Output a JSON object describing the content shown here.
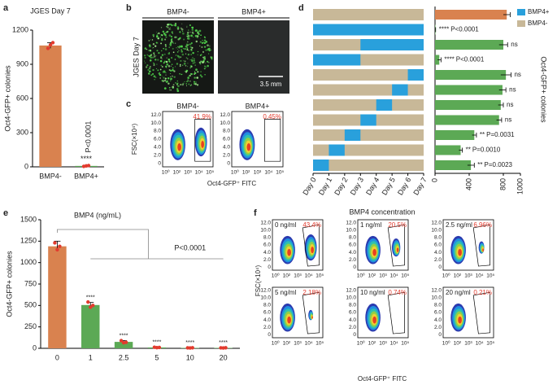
{
  "panel_labels": [
    "a",
    "b",
    "c",
    "d",
    "e",
    "f"
  ],
  "chart_data": [
    {
      "type": "bar",
      "title": "JGES Day 7",
      "ylabel": "Oct4-GFP+ colonies",
      "categories": [
        "BMP4-",
        "BMP4+"
      ],
      "values": [
        1065,
        8
      ],
      "errors": [
        25,
        3
      ],
      "points": [
        [
          1040,
          1070,
          1090
        ],
        [
          4,
          8,
          11
        ]
      ],
      "colors": [
        "#d9824f",
        "#5ca955"
      ],
      "point_color": "#e23b2e",
      "ylim": [
        0,
        1200
      ],
      "yticks": [
        0,
        300,
        600,
        900,
        1200
      ],
      "annotations": [
        {
          "category": 1,
          "stars": "****",
          "text": "P<0.0001"
        }
      ]
    },
    {
      "type": "timeline",
      "series": [
        {
          "name": "BMP4+",
          "color": "#29a0dc",
          "starts": [
            null,
            0,
            3,
            0,
            6,
            5,
            4,
            3,
            2,
            1,
            0
          ],
          "ends": [
            null,
            7,
            7,
            3,
            7,
            6,
            5,
            4,
            3,
            2,
            1
          ]
        },
        {
          "name": "BMP4-",
          "color": "#c8b898"
        }
      ],
      "xlim": [
        0,
        7
      ],
      "xticks": [
        {
          "value": 0,
          "label": "Day 0"
        },
        {
          "value": 1,
          "label": "Day 1"
        },
        {
          "value": 2,
          "label": "Day 2"
        },
        {
          "value": 3,
          "label": "Day 3"
        },
        {
          "value": 4,
          "label": "Day 4"
        },
        {
          "value": 5,
          "label": "Day 5"
        },
        {
          "value": 6,
          "label": "Day 6"
        },
        {
          "value": 7,
          "label": "Day 7"
        }
      ]
    },
    {
      "type": "hbar",
      "ylabel": "Oct4-GFP+ colonies",
      "values": [
        840,
        5,
        800,
        50,
        830,
        790,
        770,
        750,
        460,
        300,
        420
      ],
      "errors": [
        40,
        2,
        50,
        20,
        60,
        40,
        30,
        30,
        25,
        20,
        40
      ],
      "colors": [
        "#d9824f",
        "#5ca955",
        "#5ca955",
        "#5ca955",
        "#5ca955",
        "#5ca955",
        "#5ca955",
        "#5ca955",
        "#5ca955",
        "#5ca955",
        "#5ca955"
      ],
      "xlim": [
        0,
        1000
      ],
      "xticks": [
        0,
        400,
        800,
        1000
      ],
      "annotations": [
        {
          "row": 1,
          "stars": "****",
          "text": "P<0.0001"
        },
        {
          "row": 2,
          "text": "ns"
        },
        {
          "row": 3,
          "stars": "****",
          "text": "P<0.0001"
        },
        {
          "row": 4,
          "text": "ns"
        },
        {
          "row": 5,
          "text": "ns"
        },
        {
          "row": 6,
          "text": "ns"
        },
        {
          "row": 7,
          "text": "ns"
        },
        {
          "row": 8,
          "stars": "**",
          "text": "P=0.0031"
        },
        {
          "row": 9,
          "stars": "**",
          "text": "P=0.0010"
        },
        {
          "row": 10,
          "stars": "**",
          "text": "P=0.0023"
        }
      ]
    },
    {
      "type": "bar",
      "title": "BMP4 (ng/mL)",
      "ylabel": "Oct4-GFP+ colonies",
      "categories": [
        "0",
        "1",
        "2.5",
        "5",
        "10",
        "20"
      ],
      "values": [
        1190,
        505,
        75,
        10,
        5,
        5
      ],
      "errors": [
        60,
        30,
        15,
        3,
        2,
        2
      ],
      "points": [
        [
          1230,
          1150,
          1190
        ],
        [
          540,
          480,
          500
        ],
        [
          90,
          65,
          70
        ],
        [
          12,
          8,
          10
        ],
        [
          5,
          4,
          6
        ],
        [
          5,
          4,
          6
        ]
      ],
      "colors": [
        "#d9824f",
        "#5ca955",
        "#5ca955",
        "#5ca955",
        "#5ca955",
        "#5ca955"
      ],
      "point_color": "#e23b2e",
      "ylim": [
        0,
        1500
      ],
      "yticks": [
        0,
        250,
        500,
        750,
        1000,
        1250,
        1500
      ],
      "annotations": [
        {
          "category": 1,
          "stars": "****"
        },
        {
          "category": 2,
          "stars": "****"
        },
        {
          "category": 3,
          "stars": "****"
        },
        {
          "category": 4,
          "stars": "****"
        },
        {
          "category": 5,
          "stars": "****"
        }
      ],
      "comparison_label": "P<0.0001"
    }
  ],
  "image_panel": {
    "columns": [
      "BMP4-",
      "BMP4+"
    ],
    "row_label": "JGES Day 7",
    "scale_bar": "3.5 mm"
  },
  "flow_c": {
    "plots": [
      {
        "label": "BMP4-",
        "gate": "41.9%"
      },
      {
        "label": "BMP4+",
        "gate": "0.45%"
      }
    ],
    "ylabel": "FSC(×10⁴)",
    "xlabel": "Oct4-GFP⁺ FITC",
    "yticks": [
      "12.0",
      "10.0",
      "8.0",
      "6.0",
      "4.0",
      "2.0",
      "0"
    ],
    "xticks": [
      "10⁰",
      "10²",
      "10³",
      "10⁴",
      "10⁵"
    ]
  },
  "flow_f": {
    "title": "BMP4 concentration",
    "plots": [
      {
        "label": "0 ng/ml",
        "gate": "43.4%"
      },
      {
        "label": "1 ng/ml",
        "gate": "20.5%"
      },
      {
        "label": "2.5 ng/ml",
        "gate": "6.96%"
      },
      {
        "label": "5 ng/ml",
        "gate": "2.18%"
      },
      {
        "label": "10 ng/ml",
        "gate": "0.74%"
      },
      {
        "label": "20 ng/ml",
        "gate": "0.21%"
      }
    ],
    "ylabel": "FSC(×10⁴)",
    "xlabel": "Oct4-GFP⁺ FITC",
    "yticks": [
      "12.0",
      "10.0",
      "8.0",
      "6.0",
      "4.0",
      "2.0",
      "0"
    ],
    "xticks": [
      "10⁰",
      "10²",
      "10³",
      "10⁴",
      "10⁵"
    ]
  }
}
